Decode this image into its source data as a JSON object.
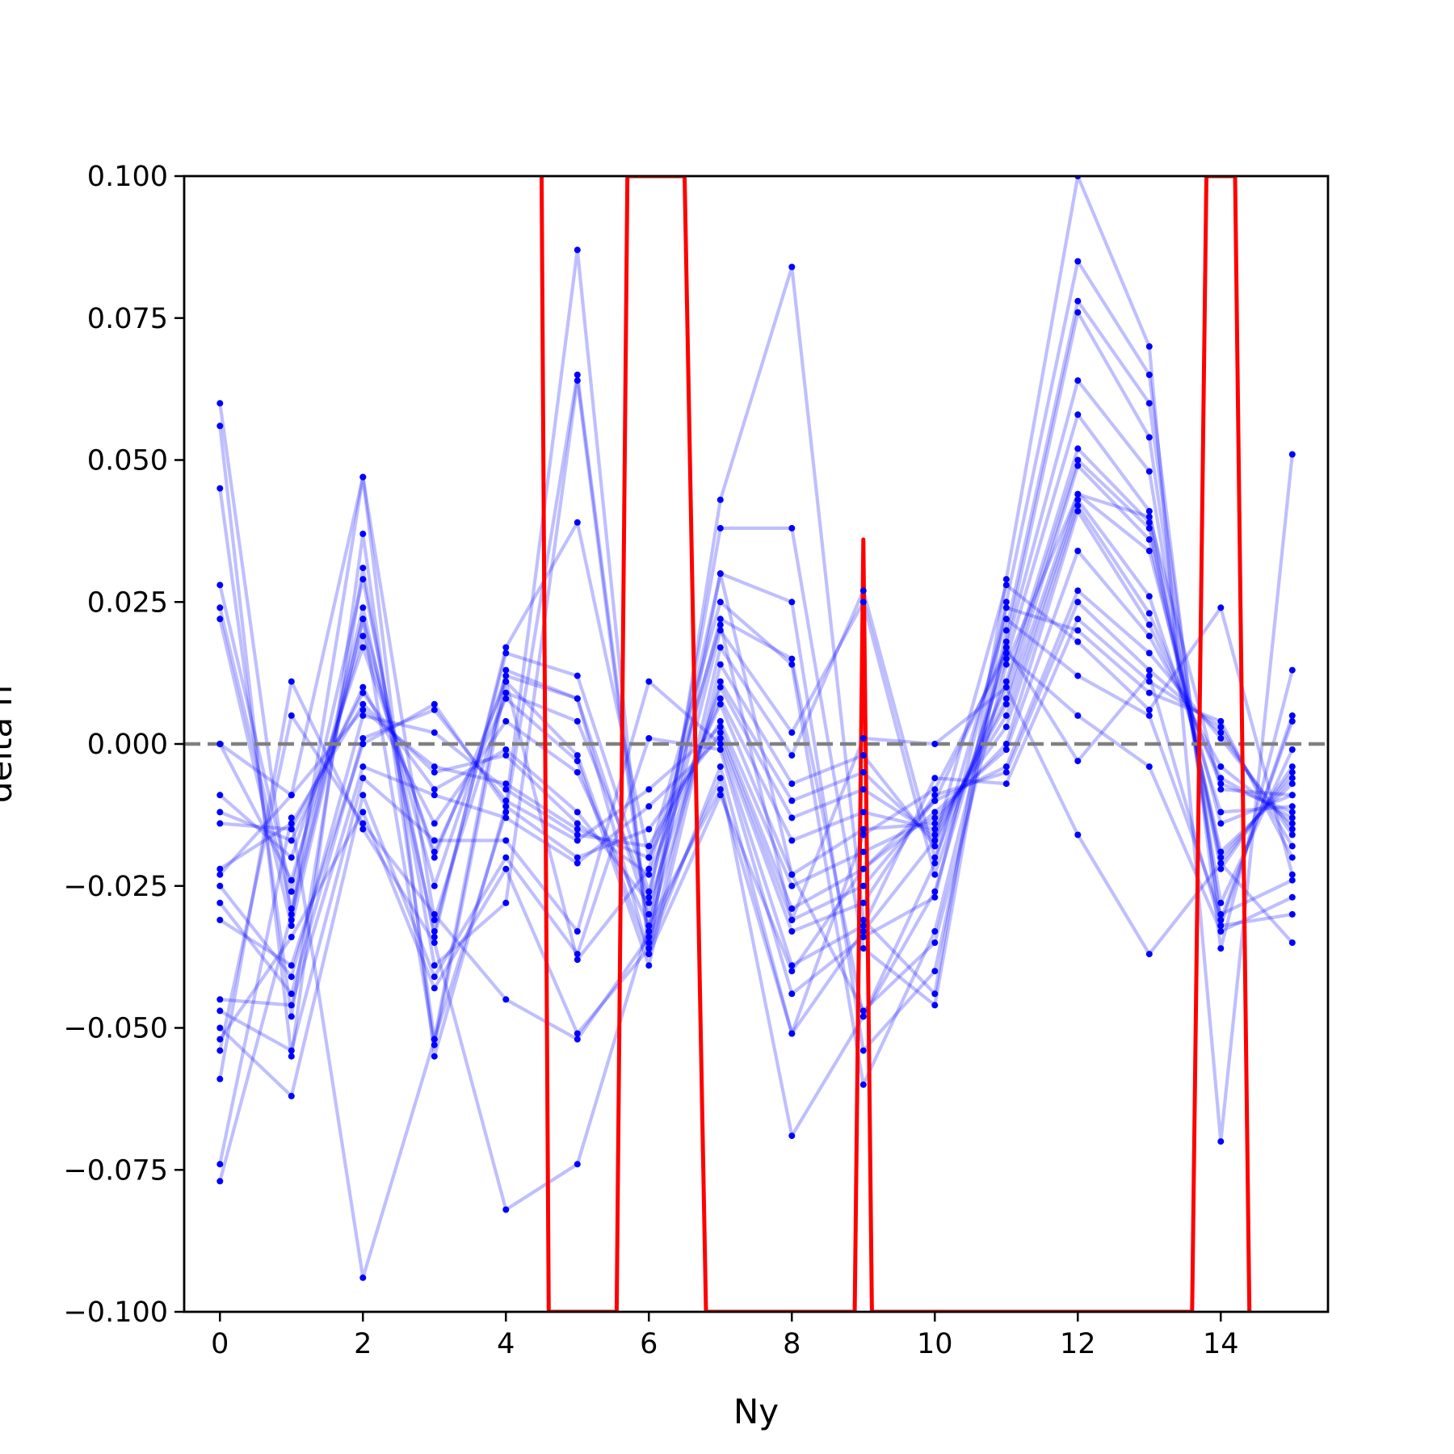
{
  "chart_data": {
    "type": "line",
    "title": "",
    "xlabel": "Ny",
    "ylabel": "delta n",
    "xlim": [
      -0.5,
      15.5
    ],
    "ylim": [
      -0.1,
      0.1
    ],
    "x_ticks": [
      0,
      2,
      4,
      6,
      8,
      10,
      12,
      14
    ],
    "y_ticks": [
      0.1,
      0.075,
      0.05,
      0.025,
      0.0,
      -0.025,
      -0.05,
      -0.075,
      -0.1
    ],
    "x_tick_labels": [
      "0",
      "2",
      "4",
      "6",
      "8",
      "10",
      "12",
      "14"
    ],
    "y_tick_labels": [
      "0.100",
      "0.075",
      "0.050",
      "0.025",
      "0.000",
      "−0.025",
      "−0.050",
      "−0.075",
      "−0.100"
    ],
    "grid": false,
    "legend": "none",
    "reference_line": {
      "y": 0.0,
      "style": "dashed",
      "color": "#808080"
    },
    "colors": {
      "samples": "#0000ff",
      "mean": "#ff0000"
    },
    "x": [
      0,
      1,
      2,
      3,
      4,
      5,
      6,
      7,
      8,
      9,
      10,
      11,
      12,
      13,
      14,
      15
    ],
    "mean_series": {
      "x": [
        4.5,
        4.6,
        5.55,
        5.7,
        6.5,
        6.8,
        8.88,
        9.0,
        9.12,
        13.6,
        13.8,
        14.2,
        14.4
      ],
      "values": [
        0.1,
        -0.1,
        -0.1,
        0.1,
        0.1,
        -0.1,
        -0.1,
        0.036,
        -0.1,
        -0.1,
        0.1,
        0.1,
        -0.1
      ]
    },
    "series": [
      {
        "values": [
          0.06,
          -0.031,
          0.047,
          -0.055,
          -0.011,
          0.087,
          -0.037,
          0.043,
          0.084,
          -0.031,
          -0.044,
          0.029,
          0.1,
          0.07,
          -0.07,
          0.051
        ]
      },
      {
        "values": [
          0.056,
          -0.055,
          0.037,
          -0.052,
          -0.012,
          0.065,
          -0.033,
          0.038,
          0.038,
          -0.036,
          -0.046,
          0.025,
          0.085,
          0.065,
          -0.036,
          0.013
        ]
      },
      {
        "values": [
          0.045,
          -0.048,
          0.031,
          -0.039,
          -0.028,
          0.064,
          -0.035,
          0.03,
          0.025,
          -0.054,
          -0.04,
          0.02,
          0.078,
          0.06,
          -0.032,
          0.005
        ]
      },
      {
        "values": [
          0.028,
          -0.026,
          0.029,
          -0.034,
          0.017,
          0.039,
          -0.02,
          0.025,
          0.014,
          -0.06,
          -0.033,
          0.018,
          0.076,
          0.054,
          -0.031,
          0.004
        ]
      },
      {
        "values": [
          0.024,
          -0.029,
          0.024,
          -0.033,
          0.016,
          0.012,
          -0.026,
          0.022,
          0.015,
          -0.048,
          -0.026,
          0.017,
          0.064,
          0.048,
          -0.028,
          -0.001
        ]
      },
      {
        "values": [
          0.022,
          -0.032,
          0.022,
          -0.025,
          0.012,
          0.008,
          -0.03,
          0.02,
          0.002,
          0.025,
          -0.023,
          0.015,
          0.058,
          0.041,
          -0.022,
          -0.004
        ]
      },
      {
        "values": [
          0.0,
          -0.024,
          0.019,
          -0.02,
          0.011,
          -0.002,
          -0.037,
          0.017,
          -0.002,
          0.027,
          -0.02,
          0.011,
          0.052,
          0.039,
          -0.021,
          -0.005
        ]
      },
      {
        "values": [
          -0.009,
          -0.02,
          0.017,
          -0.019,
          0.008,
          -0.003,
          -0.039,
          0.014,
          -0.007,
          -0.002,
          -0.018,
          0.01,
          0.05,
          0.038,
          -0.02,
          -0.006
        ]
      },
      {
        "values": [
          -0.012,
          -0.017,
          0.01,
          -0.014,
          0.004,
          -0.005,
          -0.032,
          0.011,
          -0.01,
          -0.005,
          -0.017,
          0.008,
          0.049,
          0.036,
          -0.019,
          -0.007
        ]
      },
      {
        "values": [
          -0.014,
          -0.015,
          0.009,
          -0.008,
          -0.001,
          -0.012,
          -0.028,
          0.01,
          -0.013,
          -0.008,
          -0.016,
          0.007,
          0.044,
          0.034,
          -0.014,
          -0.009
        ]
      },
      {
        "values": [
          -0.022,
          -0.014,
          0.007,
          -0.005,
          -0.002,
          -0.014,
          -0.023,
          0.008,
          -0.017,
          -0.012,
          -0.015,
          0.005,
          0.043,
          0.026,
          -0.012,
          -0.011
        ]
      },
      {
        "values": [
          -0.023,
          -0.009,
          0.006,
          -0.004,
          -0.007,
          -0.015,
          -0.02,
          0.007,
          -0.023,
          -0.015,
          -0.014,
          0.003,
          0.042,
          0.023,
          -0.007,
          -0.012
        ]
      },
      {
        "values": [
          -0.025,
          -0.041,
          0.005,
          0.002,
          -0.008,
          -0.016,
          -0.018,
          0.004,
          -0.025,
          -0.019,
          -0.013,
          0.0,
          0.041,
          0.021,
          -0.006,
          -0.013
        ]
      },
      {
        "values": [
          -0.028,
          -0.044,
          0.001,
          0.006,
          -0.01,
          -0.017,
          -0.008,
          0.003,
          -0.029,
          -0.022,
          -0.012,
          -0.001,
          0.034,
          0.019,
          -0.004,
          -0.014
        ]
      },
      {
        "values": [
          -0.031,
          -0.039,
          0.0,
          0.007,
          -0.011,
          -0.02,
          -0.015,
          0.002,
          -0.031,
          -0.025,
          -0.01,
          -0.004,
          0.027,
          0.016,
          0.001,
          -0.015
        ]
      },
      {
        "values": [
          -0.045,
          -0.046,
          -0.004,
          -0.009,
          -0.013,
          -0.021,
          -0.011,
          0.001,
          -0.033,
          -0.028,
          -0.009,
          -0.005,
          0.025,
          0.013,
          0.002,
          -0.016
        ]
      },
      {
        "values": [
          -0.047,
          -0.054,
          -0.006,
          -0.017,
          -0.017,
          -0.033,
          0.011,
          0.0,
          -0.039,
          -0.032,
          -0.006,
          -0.007,
          0.022,
          0.011,
          0.003,
          -0.018
        ]
      },
      {
        "values": [
          -0.05,
          -0.062,
          -0.009,
          -0.041,
          -0.02,
          -0.037,
          0.001,
          -0.001,
          -0.044,
          -0.034,
          -0.027,
          0.024,
          0.02,
          0.009,
          0.004,
          -0.02
        ]
      },
      {
        "values": [
          -0.052,
          -0.034,
          -0.012,
          -0.043,
          -0.022,
          -0.051,
          -0.036,
          -0.004,
          -0.051,
          -0.033,
          -0.017,
          0.028,
          0.018,
          0.006,
          0.024,
          -0.023
        ]
      },
      {
        "values": [
          -0.054,
          0.005,
          -0.014,
          -0.03,
          -0.045,
          -0.052,
          -0.034,
          -0.006,
          -0.069,
          -0.048,
          -0.021,
          0.022,
          0.012,
          0.005,
          -0.03,
          -0.024
        ]
      },
      {
        "values": [
          -0.059,
          0.011,
          -0.015,
          -0.035,
          -0.082,
          -0.074,
          -0.032,
          -0.008,
          -0.051,
          -0.016,
          -0.008,
          0.016,
          0.005,
          -0.004,
          -0.033,
          -0.027
        ]
      },
      {
        "values": [
          -0.074,
          -0.013,
          -0.094,
          -0.052,
          0.013,
          0.008,
          -0.037,
          -0.009,
          -0.04,
          -0.022,
          -0.01,
          0.017,
          -0.003,
          0.012,
          -0.032,
          -0.03
        ]
      },
      {
        "values": [
          -0.077,
          -0.03,
          0.022,
          -0.053,
          0.011,
          -0.038,
          -0.022,
          0.021,
          -0.031,
          0.001,
          0.0,
          0.01,
          -0.016,
          -0.037,
          -0.021,
          -0.035
        ]
      },
      {
        "values": [
          0.0,
          -0.009,
          0.047,
          -0.031,
          0.009,
          0.004,
          -0.027,
          0.03,
          -0.023,
          -0.047,
          -0.035,
          0.014,
          0.044,
          0.04,
          -0.008,
          -0.009
        ]
      }
    ]
  }
}
